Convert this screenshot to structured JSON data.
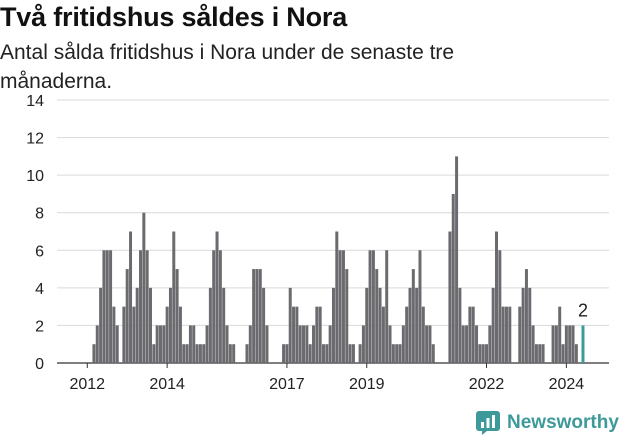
{
  "title": "Två fritidshus såldes i Nora",
  "subtitle": "Antal sålda fritidshus i Nora under de senaste tre månaderna.",
  "brand": {
    "name": "Newsworthy",
    "icon": "newsworthy-logo-icon",
    "color": "#3e9a9a"
  },
  "chart_data": {
    "type": "bar",
    "title": "Två fritidshus såldes i Nora",
    "subtitle": "Antal sålda fritidshus i Nora under de senaste tre månaderna.",
    "xlabel": "",
    "ylabel": "",
    "ylim": [
      0,
      14
    ],
    "y_ticks": [
      "0",
      "2",
      "4",
      "6",
      "8",
      "10",
      "12",
      "14"
    ],
    "x_ticks": [
      "2012",
      "2014",
      "2017",
      "2019",
      "2022",
      "2024"
    ],
    "grid": true,
    "legend": "none",
    "bar_color": "#6b6b6f",
    "highlight_color": "#3e9a9a",
    "start": "2011-06",
    "end": "2024-11",
    "last_value_label": "2",
    "values": [
      0,
      0,
      0,
      0,
      0,
      0,
      0,
      0,
      0,
      1,
      2,
      4,
      6,
      6,
      6,
      3,
      2,
      0,
      3,
      5,
      7,
      3,
      4,
      6,
      8,
      6,
      4,
      1,
      2,
      2,
      2,
      3,
      4,
      7,
      5,
      3,
      1,
      1,
      2,
      2,
      1,
      1,
      1,
      2,
      4,
      6,
      7,
      6,
      4,
      2,
      1,
      1,
      0,
      0,
      0,
      1,
      2,
      5,
      5,
      5,
      4,
      2,
      0,
      0,
      0,
      0,
      1,
      1,
      4,
      3,
      3,
      2,
      2,
      2,
      1,
      2,
      3,
      3,
      1,
      1,
      2,
      4,
      7,
      6,
      6,
      5,
      1,
      1,
      0,
      1,
      2,
      4,
      6,
      6,
      5,
      4,
      3,
      6,
      2,
      1,
      1,
      1,
      2,
      3,
      4,
      5,
      4,
      6,
      3,
      2,
      2,
      1,
      0,
      0,
      0,
      0,
      7,
      9,
      11,
      4,
      2,
      2,
      3,
      3,
      2,
      1,
      1,
      1,
      2,
      4,
      7,
      6,
      3,
      3,
      3,
      0,
      0,
      3,
      4,
      5,
      4,
      2,
      1,
      1,
      1,
      0,
      0,
      2,
      2,
      3,
      1,
      2,
      2,
      2,
      1,
      0,
      2
    ]
  }
}
